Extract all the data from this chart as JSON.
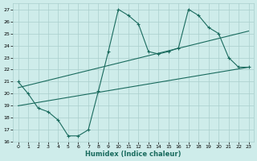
{
  "xlabel": "Humidex (Indice chaleur)",
  "bg_color": "#ceecea",
  "grid_color": "#aacfcc",
  "line_color": "#1a6b5e",
  "xlim": [
    -0.5,
    23.5
  ],
  "ylim": [
    16,
    27.5
  ],
  "xticks": [
    0,
    1,
    2,
    3,
    4,
    5,
    6,
    7,
    8,
    9,
    10,
    11,
    12,
    13,
    14,
    15,
    16,
    17,
    18,
    19,
    20,
    21,
    22,
    23
  ],
  "yticks": [
    16,
    17,
    18,
    19,
    20,
    21,
    22,
    23,
    24,
    25,
    26,
    27
  ],
  "line1_x": [
    0,
    1,
    2,
    3,
    4,
    5,
    6,
    7,
    8,
    9,
    10,
    11,
    12,
    13,
    14,
    15,
    16,
    17,
    18,
    19,
    20,
    21,
    22,
    23
  ],
  "line1_y": [
    21,
    20,
    18.8,
    18.5,
    17.8,
    16.5,
    16.5,
    17,
    20.2,
    23.5,
    27,
    26.5,
    25.8,
    23.5,
    23.3,
    23.5,
    23.8,
    27,
    26.5,
    25.5,
    25,
    23,
    22.2,
    22.2
  ],
  "line2_x": [
    0,
    23
  ],
  "line2_y": [
    19.0,
    22.2
  ],
  "line3_x": [
    0,
    23
  ],
  "line3_y": [
    20.5,
    25.2
  ]
}
